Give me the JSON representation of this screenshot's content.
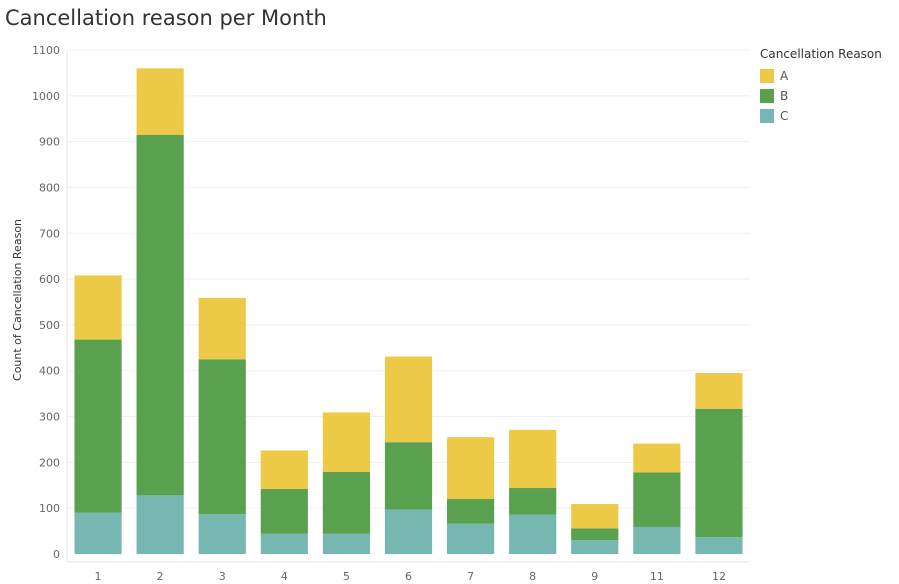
{
  "chart_data": {
    "type": "bar",
    "stacked": true,
    "title": "Cancellation reason per Month",
    "xlabel": "",
    "ylabel": "Count of Cancellation Reason",
    "ylim": [
      0,
      1100
    ],
    "yticks": [
      0,
      100,
      200,
      300,
      400,
      500,
      600,
      700,
      800,
      900,
      1000,
      1100
    ],
    "grid": true,
    "legend_title": "Cancellation Reason",
    "legend_position": "top-right",
    "categories": [
      "1",
      "2",
      "3",
      "4",
      "5",
      "6",
      "7",
      "8",
      "9",
      "11",
      "12"
    ],
    "series": [
      {
        "name": "C",
        "color": "#76b7b2",
        "values": [
          90,
          128,
          87,
          44,
          44,
          97,
          66,
          86,
          30,
          59,
          37
        ]
      },
      {
        "name": "B",
        "color": "#59a14f",
        "values": [
          378,
          787,
          338,
          98,
          135,
          147,
          54,
          58,
          26,
          119,
          280
        ]
      },
      {
        "name": "A",
        "color": "#edc948",
        "values": [
          140,
          145,
          134,
          84,
          130,
          187,
          135,
          127,
          53,
          63,
          78
        ]
      }
    ]
  }
}
